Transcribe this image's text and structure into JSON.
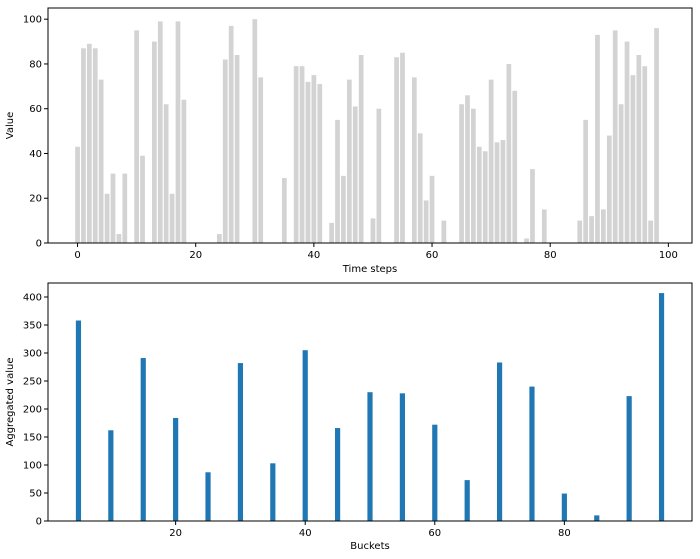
{
  "chart_data": [
    {
      "type": "bar",
      "xlabel": "Time steps",
      "ylabel": "Value",
      "xlim": [
        -5,
        104
      ],
      "ylim": [
        0,
        105
      ],
      "xticks": [
        0,
        20,
        40,
        60,
        80,
        100
      ],
      "yticks": [
        0,
        20,
        40,
        60,
        80,
        100
      ],
      "color": "#d3d3d3",
      "grid": false,
      "x": [
        0,
        1,
        2,
        3,
        4,
        5,
        6,
        7,
        8,
        9,
        10,
        11,
        12,
        13,
        14,
        15,
        16,
        17,
        18,
        19,
        20,
        21,
        22,
        23,
        24,
        25,
        26,
        27,
        28,
        29,
        30,
        31,
        32,
        33,
        34,
        35,
        36,
        37,
        38,
        39,
        40,
        41,
        42,
        43,
        44,
        45,
        46,
        47,
        48,
        49,
        50,
        51,
        52,
        53,
        54,
        55,
        56,
        57,
        58,
        59,
        60,
        61,
        62,
        63,
        64,
        65,
        66,
        67,
        68,
        69,
        70,
        71,
        72,
        73,
        74,
        75,
        76,
        77,
        78,
        79,
        80,
        81,
        82,
        83,
        84,
        85,
        86,
        87,
        88,
        89,
        90,
        91,
        92,
        93,
        94,
        95,
        96,
        97,
        98,
        99
      ],
      "values": [
        43,
        87,
        89,
        87,
        73,
        22,
        31,
        4,
        31,
        0,
        95,
        39,
        0,
        90,
        99,
        62,
        22,
        99,
        64,
        0,
        0,
        0,
        0,
        0,
        4,
        82,
        97,
        84,
        0,
        0,
        100,
        74,
        0,
        0,
        0,
        29,
        0,
        79,
        79,
        72,
        75,
        71,
        0,
        9,
        55,
        30,
        73,
        61,
        84,
        0,
        11,
        60,
        0,
        0,
        83,
        85,
        0,
        74,
        49,
        19,
        30,
        0,
        10,
        0,
        0,
        62,
        66,
        60,
        43,
        41,
        73,
        45,
        46,
        80,
        68,
        0,
        2,
        33,
        0,
        15,
        0,
        0,
        0,
        0,
        0,
        10,
        55,
        12,
        93,
        15,
        48,
        95,
        62,
        90,
        75,
        84,
        79,
        10,
        96,
        0
      ]
    },
    {
      "type": "bar",
      "xlabel": "Buckets",
      "ylabel": "Aggregated value",
      "xlim": [
        0.3,
        99.7
      ],
      "ylim": [
        0,
        425
      ],
      "xticks": [
        20,
        40,
        60,
        80
      ],
      "yticks": [
        0,
        50,
        100,
        150,
        200,
        250,
        300,
        350,
        400
      ],
      "color": "#1f77b4",
      "grid": false,
      "x": [
        5,
        10,
        15,
        20,
        25,
        30,
        35,
        40,
        45,
        50,
        55,
        60,
        65,
        70,
        75,
        80,
        85,
        90,
        95
      ],
      "values": [
        358,
        162,
        291,
        184,
        87,
        282,
        103,
        305,
        166,
        230,
        228,
        172,
        73,
        283,
        240,
        49,
        10,
        223,
        407
      ]
    }
  ]
}
